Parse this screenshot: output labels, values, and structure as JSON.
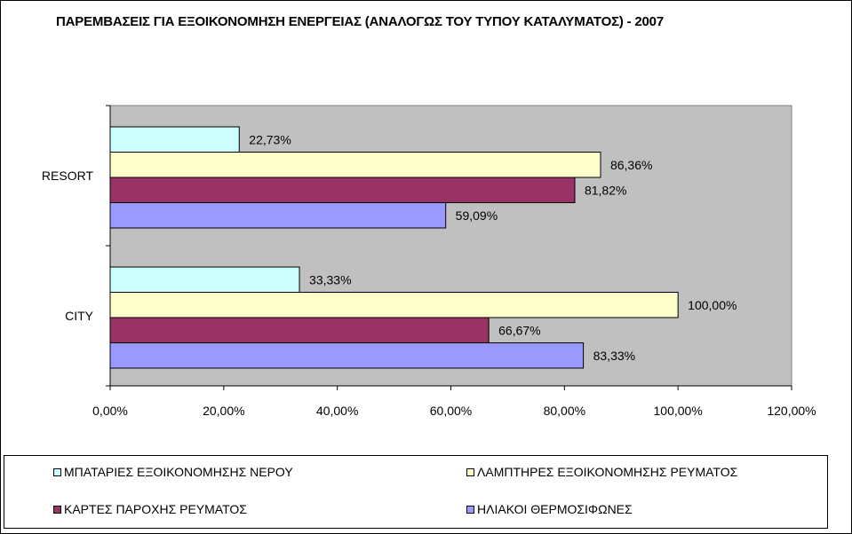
{
  "chart_data": {
    "type": "bar",
    "orientation": "horizontal",
    "title": "ΠΑΡΕΜΒΑΣΕΙΣ ΓΙΑ ΕΞΟΙΚΟΝΟΜΗΣΗ ΕΝΕΡΓΕΙΑΣ (ΑΝΑΛΟΓΩΣ ΤΟΥ ΤΥΠΟΥ ΚΑΤΑΛΥΜΑΤΟΣ) - 2007",
    "categories": [
      "RESORT",
      "CITY"
    ],
    "series": [
      {
        "name": "ΜΠΑΤΑΡΙΕΣ ΕΞΟΙΚΟΝΟΜΗΣΗΣ ΝΕΡΟΥ",
        "color": "#ccffff",
        "values": [
          22.73,
          33.33
        ],
        "labels": [
          "22,73%",
          "33,33%"
        ]
      },
      {
        "name": "ΛΑΜΠΤΗΡΕΣ ΕΞΟΙΚΟΝΟΜΗΣΗΣ ΡΕΥΜΑΤΟΣ",
        "color": "#ffffcc",
        "values": [
          86.36,
          100.0
        ],
        "labels": [
          "86,36%",
          "100,00%"
        ]
      },
      {
        "name": "ΚΑΡΤΕΣ ΠΑΡΟΧΗΣ ΡΕΥΜΑΤΟΣ",
        "color": "#993366",
        "values": [
          81.82,
          66.67
        ],
        "labels": [
          "81,82%",
          "66,67%"
        ]
      },
      {
        "name": "ΗΛΙΑΚΟΙ ΘΕΡΜΟΣΙΦΩΝΕΣ",
        "color": "#9999ff",
        "values": [
          59.09,
          83.33
        ],
        "labels": [
          "59,09%",
          "83,33%"
        ]
      }
    ],
    "xlim": [
      0,
      120
    ],
    "xticks": [
      0,
      20,
      40,
      60,
      80,
      100,
      120
    ],
    "xtick_labels": [
      "0,00%",
      "20,00%",
      "40,00%",
      "60,00%",
      "80,00%",
      "100,00%",
      "120,00%"
    ],
    "plot_background": "#c0c0c0",
    "grid": false,
    "legend_position": "bottom"
  }
}
